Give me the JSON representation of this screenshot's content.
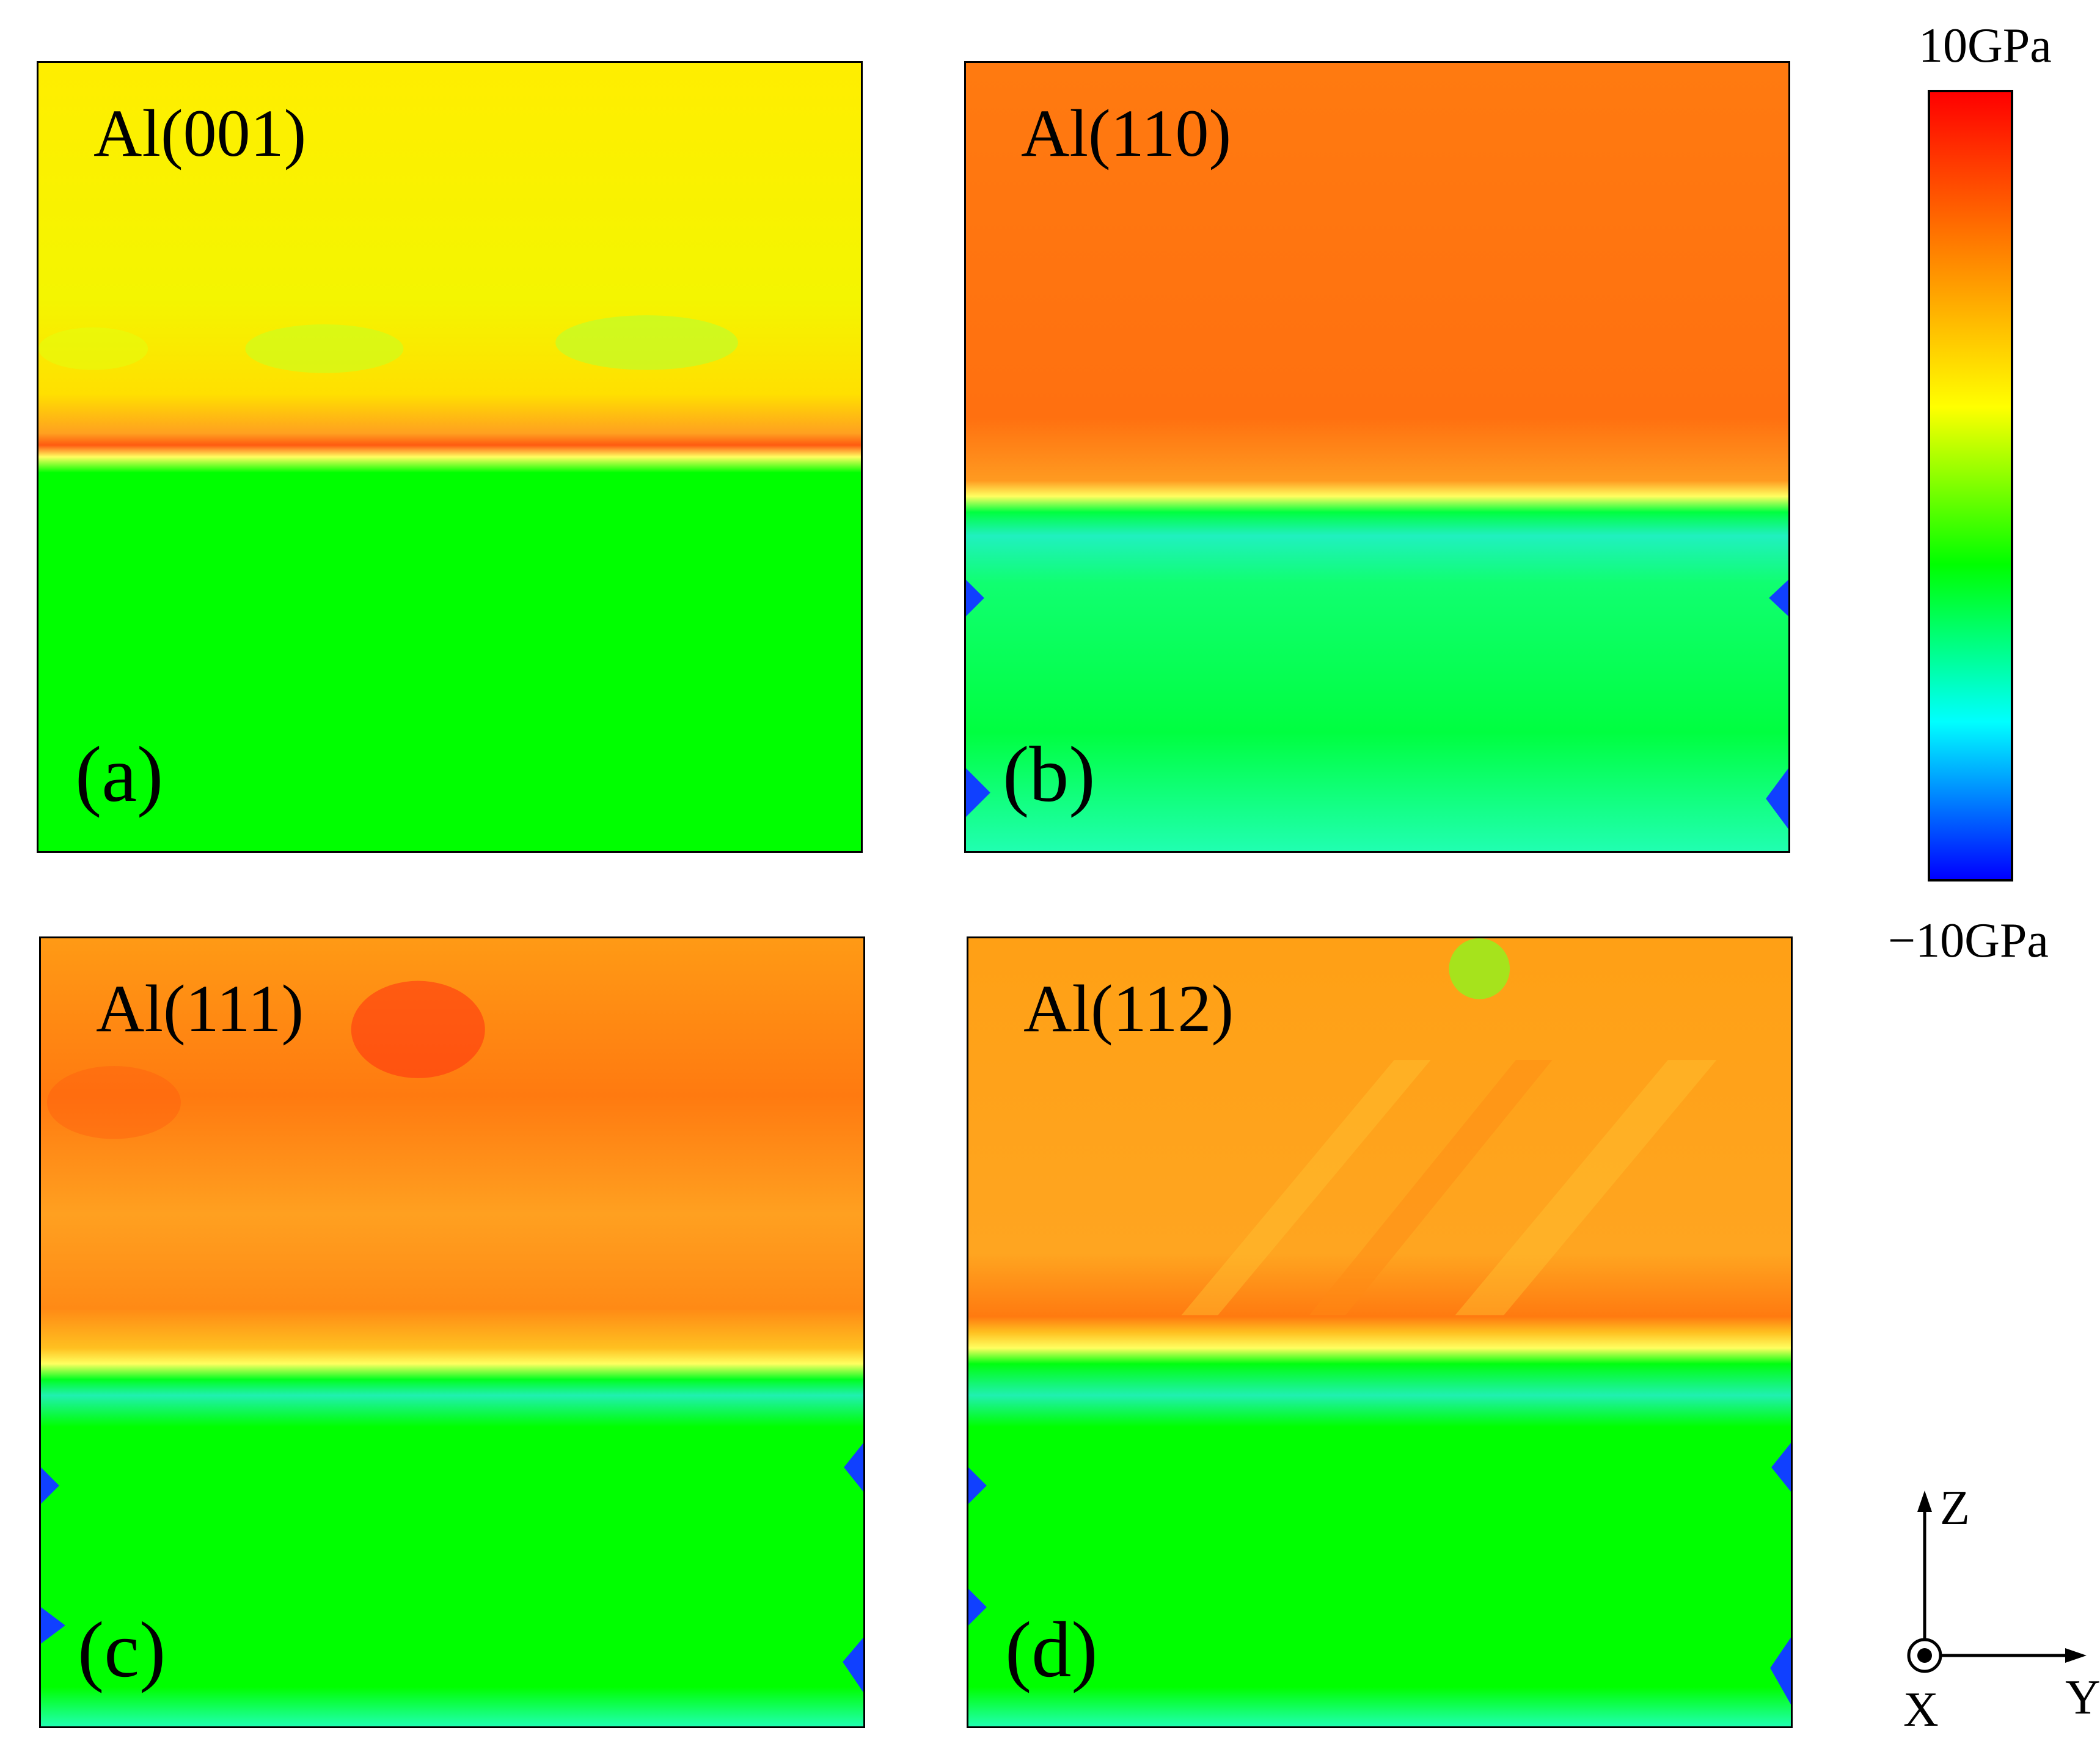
{
  "chart_data": {
    "type": "heatmap",
    "title": "",
    "colorbar": {
      "max_label": "10GPa",
      "min_label": "−10GPa",
      "range": [
        -10,
        10
      ],
      "unit": "GPa",
      "colormap": [
        "#0000ff",
        "#00ffff",
        "#00ff00",
        "#ffff00",
        "#ff8000",
        "#ff0000"
      ]
    },
    "panels": [
      {
        "letter": "(a)",
        "material": "Al(001)",
        "upper_stress_gpa": 3.0,
        "lower_stress_gpa": 0.0,
        "interface_stress_gpa": 6.5,
        "upper_color": "#ffe600",
        "lower_color": "#00ff00"
      },
      {
        "letter": "(b)",
        "material": "Al(110)",
        "upper_stress_gpa": 6.8,
        "lower_stress_gpa": -1.0,
        "interface_stress_gpa": 7.5,
        "upper_color": "#ff7a10",
        "lower_color": "#00ff40"
      },
      {
        "letter": "(c)",
        "material": "Al(111)",
        "upper_stress_gpa": 6.3,
        "lower_stress_gpa": -0.3,
        "interface_stress_gpa": 6.8,
        "upper_color": "#ff8a10",
        "lower_color": "#00ff00"
      },
      {
        "letter": "(d)",
        "material": "Al(112)",
        "upper_stress_gpa": 5.8,
        "lower_stress_gpa": -0.3,
        "interface_stress_gpa": 6.6,
        "upper_color": "#ff9a10",
        "lower_color": "#00ff00"
      }
    ],
    "axes": {
      "z": "Z",
      "y": "Y",
      "x": "X"
    }
  }
}
